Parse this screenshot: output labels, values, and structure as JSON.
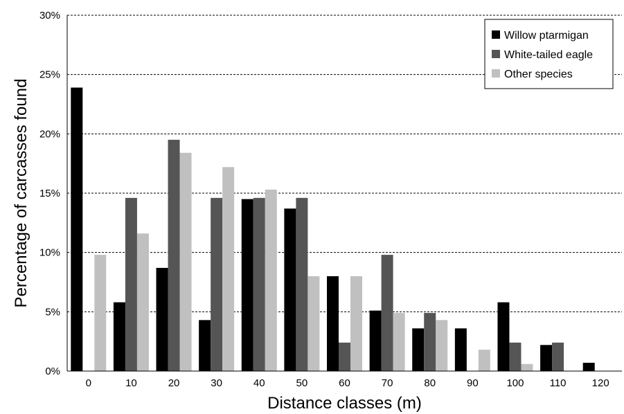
{
  "chart_data": {
    "type": "bar",
    "xlabel": "Distance classes (m)",
    "ylabel": "Percentage of carcasses found",
    "categories": [
      "0",
      "10",
      "20",
      "30",
      "40",
      "50",
      "60",
      "70",
      "80",
      "90",
      "100",
      "110",
      "120"
    ],
    "ylim": [
      0,
      30
    ],
    "y_ticks": [
      0,
      5,
      10,
      15,
      20,
      25,
      30
    ],
    "y_tick_labels": [
      "0%",
      "5%",
      "10%",
      "15%",
      "20%",
      "25%",
      "30%"
    ],
    "grid": "horizontal dashed",
    "legend_position": "top-right",
    "series": [
      {
        "name": "Willow ptarmigan",
        "color": "#000000",
        "values": [
          23.9,
          5.8,
          8.7,
          4.3,
          14.5,
          13.7,
          8.0,
          5.1,
          3.6,
          3.6,
          5.8,
          2.2,
          0.7
        ]
      },
      {
        "name": "White-tailed eagle",
        "color": "#555555",
        "values": [
          0,
          14.6,
          19.5,
          14.6,
          14.6,
          14.6,
          2.4,
          9.8,
          4.9,
          0,
          2.4,
          2.4,
          0
        ]
      },
      {
        "name": "Other species",
        "color": "#c0c0c0",
        "values": [
          9.8,
          11.6,
          18.4,
          17.2,
          15.3,
          8.0,
          8.0,
          4.9,
          4.3,
          1.8,
          0.6,
          0,
          0
        ]
      }
    ]
  }
}
